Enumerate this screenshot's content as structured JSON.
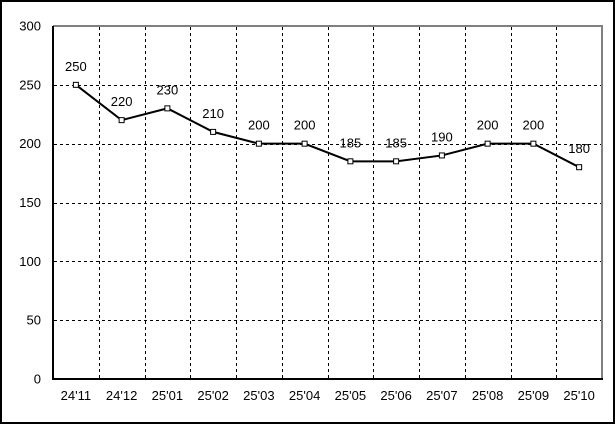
{
  "chart_data": {
    "type": "line",
    "title": "",
    "xlabel": "",
    "ylabel": "",
    "categories": [
      "24'11",
      "24'12",
      "25'01",
      "25'02",
      "25'03",
      "25'04",
      "25'05",
      "25'06",
      "25'07",
      "25'08",
      "25'09",
      "25'10"
    ],
    "values": [
      250,
      220,
      230,
      210,
      200,
      200,
      185,
      185,
      190,
      200,
      200,
      180
    ],
    "point_labels": [
      "250",
      "220",
      "230",
      "210",
      "200",
      "200",
      "185",
      "185",
      "190",
      "200",
      "200",
      "180"
    ],
    "ylim": [
      0,
      300
    ],
    "yticks": [
      0,
      50,
      100,
      150,
      200,
      250,
      300
    ],
    "grid": "dashed",
    "legend_position": "none",
    "colors": {
      "line": "#000000",
      "marker_fill": "#ffffff",
      "marker_stroke": "#000000",
      "gridline": "#000000",
      "axis": "#000000",
      "plot_border_top_right": "#808080",
      "outer_border": "#000000",
      "background": "#ffffff",
      "text": "#000000"
    },
    "marker": "open-square"
  }
}
